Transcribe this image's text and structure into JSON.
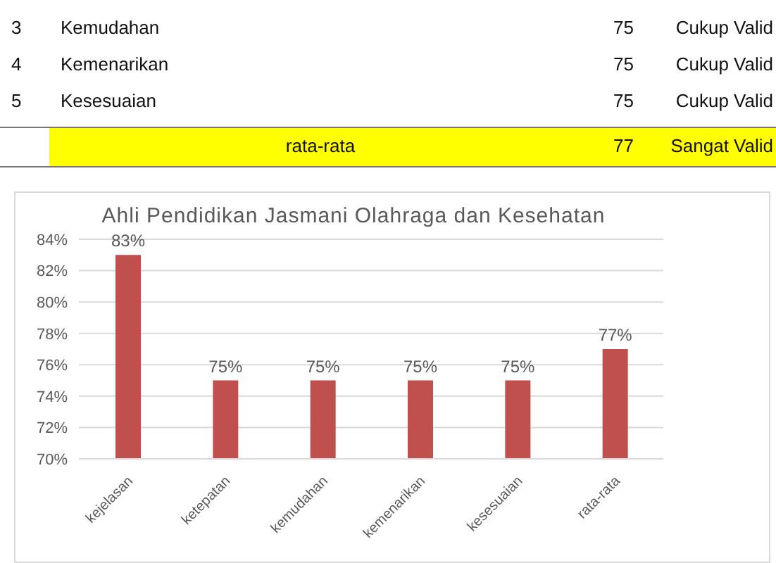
{
  "chart_data": {
    "type": "bar",
    "title": "Ahli Pendidikan Jasmani Olahraga dan Kesehatan",
    "categories": [
      "kejelasan",
      "ketepatan",
      "kemudahan",
      "kemenarikan",
      "kesesuaian",
      "rata-rata"
    ],
    "values": [
      83,
      75,
      75,
      75,
      75,
      77
    ],
    "value_labels": [
      "83%",
      "75%",
      "75%",
      "75%",
      "75%",
      "77%"
    ],
    "color": "#c0504d",
    "ylim": [
      70,
      84
    ],
    "yticks": [
      {
        "value": 70,
        "label": "70%"
      },
      {
        "value": 72,
        "label": "72%"
      },
      {
        "value": 74,
        "label": "74%"
      },
      {
        "value": 76,
        "label": "76%"
      },
      {
        "value": 78,
        "label": "78%"
      },
      {
        "value": 80,
        "label": "80%"
      },
      {
        "value": 82,
        "label": "82%"
      },
      {
        "value": 84,
        "label": "84%"
      }
    ],
    "grid": "y",
    "annotations": [
      "3",
      "Kemudahan",
      "75",
      "Cukup Valid",
      "4",
      "Kemenarikan",
      "75",
      "Cukup Valid",
      "5",
      "Kesesuaian",
      "75",
      "Cukup Valid",
      "rata-rata",
      "77",
      "Sangat Valid"
    ]
  }
}
